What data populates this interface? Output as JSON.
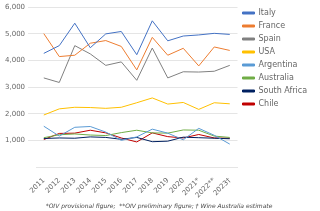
{
  "chart_data": {
    "type": "line",
    "categories": [
      "2011",
      "2012",
      "2013",
      "2014",
      "2015",
      "2016",
      "2017",
      "2018",
      "2019",
      "2020",
      "2021*",
      "2022**",
      "2023†"
    ],
    "series": [
      {
        "name": "Italy",
        "color": "#4472C4",
        "values": [
          4270,
          4560,
          5400,
          4480,
          5000,
          5090,
          4220,
          5490,
          4740,
          4920,
          4960,
          5020,
          4980
        ]
      },
      {
        "name": "France",
        "color": "#ED7D31",
        "values": [
          5010,
          4150,
          4200,
          4650,
          4750,
          4530,
          3650,
          4870,
          4200,
          4460,
          3800,
          4510,
          4380
        ]
      },
      {
        "name": "Spain",
        "color": "#808080",
        "values": [
          3350,
          3180,
          4560,
          4250,
          3820,
          3950,
          3260,
          4470,
          3350,
          3580,
          3570,
          3600,
          3820
        ]
      },
      {
        "name": "USA",
        "color": "#FFC000",
        "values": [
          1960,
          2190,
          2250,
          2240,
          2210,
          2250,
          2420,
          2600,
          2370,
          2430,
          2170,
          2420,
          2380
        ]
      },
      {
        "name": "Argentina",
        "color": "#5B9BD5",
        "values": [
          1540,
          1170,
          1500,
          1530,
          1320,
          1010,
          1140,
          1430,
          1280,
          1030,
          1460,
          1200,
          870
        ]
      },
      {
        "name": "Australia",
        "color": "#70AD47",
        "values": [
          1110,
          1220,
          1250,
          1210,
          1190,
          1300,
          1390,
          1290,
          1280,
          1400,
          1390,
          1170,
          1120
        ]
      },
      {
        "name": "South Africa",
        "color": "#002060",
        "values": [
          1080,
          1100,
          1090,
          1140,
          1120,
          1050,
          1120,
          960,
          980,
          1130,
          1110,
          1090,
          1070
        ]
      },
      {
        "name": "Chile",
        "color": "#C00000",
        "values": [
          1040,
          1270,
          1280,
          1390,
          1290,
          1100,
          950,
          1290,
          1150,
          1100,
          1230,
          1100,
          1090
        ]
      }
    ],
    "ylim": [
      0,
      6000
    ],
    "yticks": [
      {
        "value": 1000,
        "label": "1,000"
      },
      {
        "value": 2000,
        "label": "2,000"
      },
      {
        "value": 3000,
        "label": "3,000"
      },
      {
        "value": 4000,
        "label": "4,000"
      },
      {
        "value": 5000,
        "label": "5,000"
      },
      {
        "value": 6000,
        "label": "6,000"
      }
    ],
    "footnote": "*OIV provisional figure;  **OIV preliminary figure; † Wine Australia estimate",
    "grid": true,
    "legend": "right"
  }
}
